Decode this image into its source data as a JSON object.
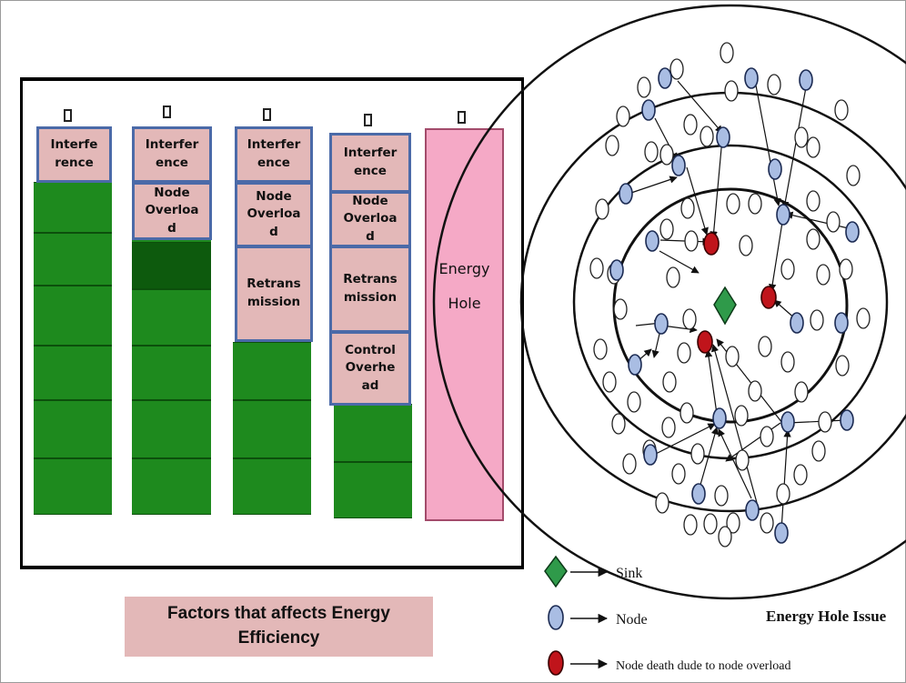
{
  "batteries": {
    "b1": {
      "labels": [
        "Interfe\nrence"
      ]
    },
    "b2": {
      "labels": [
        "Interfer\nence",
        "Node\nOverloa\nd"
      ]
    },
    "b3": {
      "labels": [
        "Interfer\nence",
        "Node\nOverloa\nd",
        "Retrans\nmission"
      ]
    },
    "b4": {
      "labels": [
        "Interfer\nence",
        "Node\nOverloa\nd",
        "Retrans\nmission",
        "Control\nOverhe\nad"
      ]
    },
    "b5": {
      "label": "Energy\nHole"
    }
  },
  "caption": "Factors that affects Energy Efficiency",
  "network": {
    "title": "Energy Hole Issue",
    "legend": {
      "sink": "Sink",
      "node": "Node",
      "dead": "Node death dude to node overload"
    }
  },
  "colors": {
    "cell_green": "#1e8a1e",
    "label_pink": "#e3b8b8",
    "label_border": "#4b6aa8",
    "energy_hole": "#f5a9c6",
    "node_blue": "#a9bde3",
    "dead_red": "#c0141b",
    "sink_green": "#2f9a4a"
  }
}
